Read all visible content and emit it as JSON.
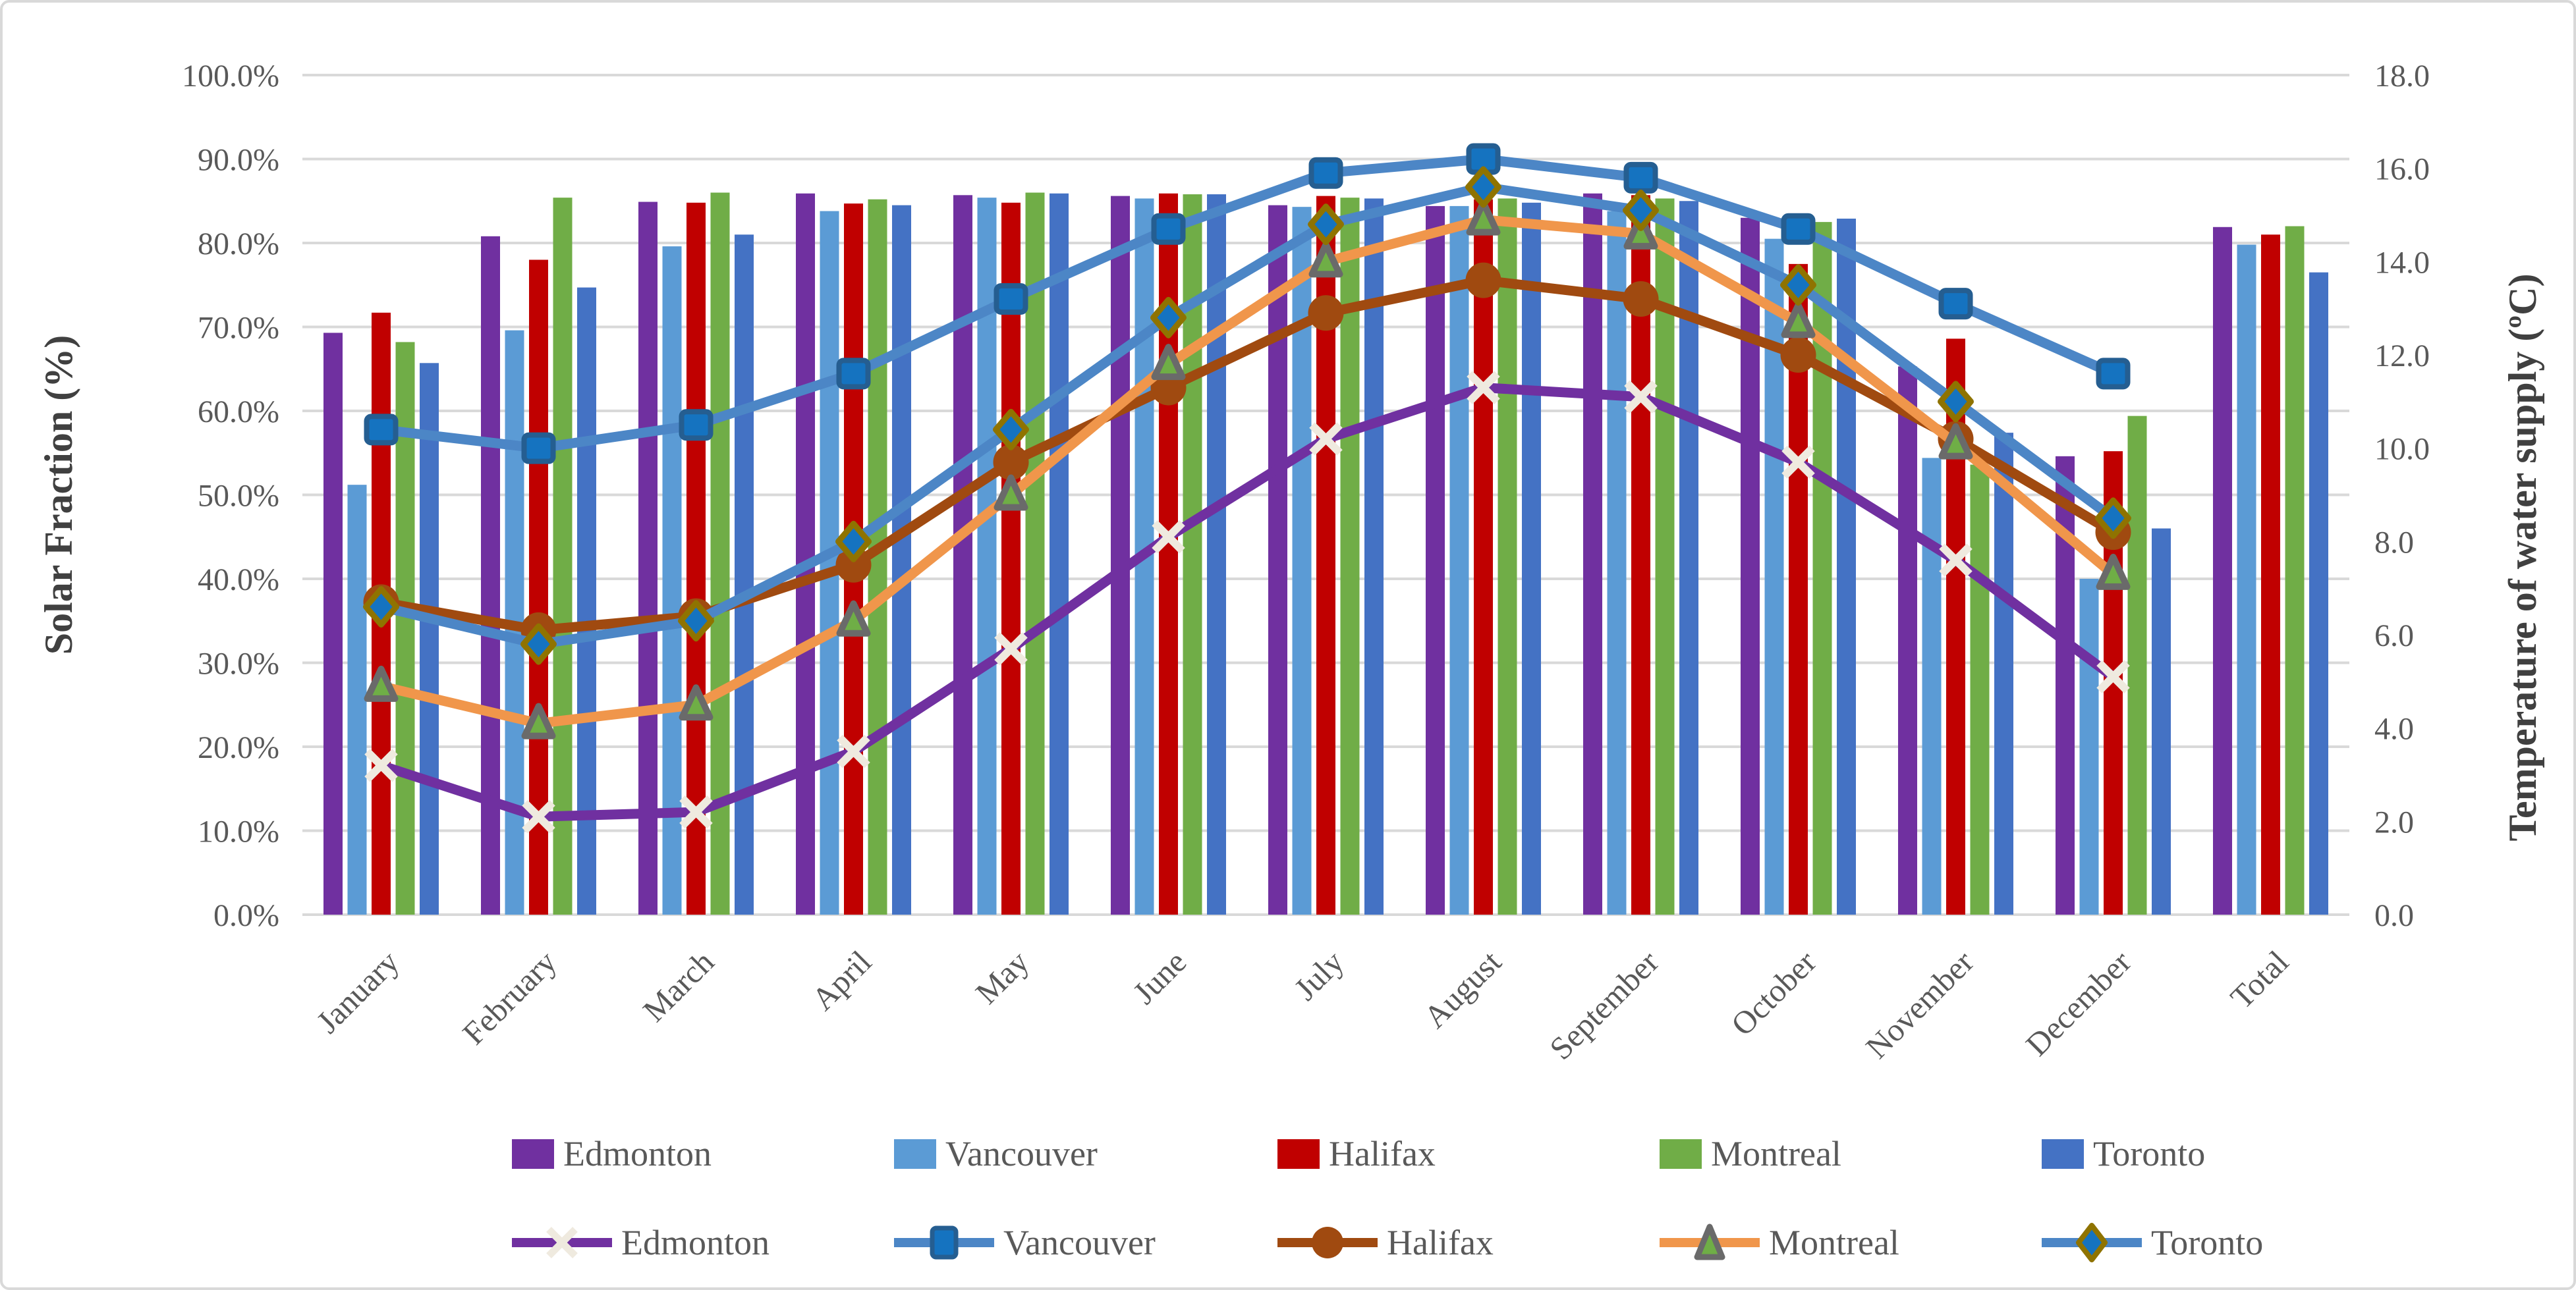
{
  "chart_data": {
    "type": "bar+line-combo",
    "categories": [
      "January",
      "February",
      "March",
      "April",
      "May",
      "June",
      "July",
      "August",
      "September",
      "October",
      "November",
      "December",
      "Total"
    ],
    "left_axis": {
      "title": "Solar Fraction (%)",
      "min": 0,
      "max": 100,
      "tick_step": 10,
      "tick_labels": [
        "0.0%",
        "10.0%",
        "20.0%",
        "30.0%",
        "40.0%",
        "50.0%",
        "60.0%",
        "70.0%",
        "80.0%",
        "90.0%",
        "100.0%"
      ]
    },
    "right_axis": {
      "title": "Temperature of water supply (ºC)",
      "min": 0,
      "max": 18,
      "tick_step": 2,
      "tick_labels": [
        "0.0",
        "2.0",
        "4.0",
        "6.0",
        "8.0",
        "10.0",
        "12.0",
        "14.0",
        "16.0",
        "18.0"
      ]
    },
    "grid": "horizontal, every 10% of left axis",
    "legend_position": "bottom, two rows (row 1 = bars, row 2 = lines)",
    "bar_series": [
      {
        "name": "Edmonton",
        "color": "#7030A0",
        "values": [
          69.3,
          80.8,
          84.9,
          85.9,
          85.7,
          85.6,
          84.5,
          84.4,
          85.9,
          83.0,
          65.3,
          54.6,
          81.9
        ]
      },
      {
        "name": "Vancouver",
        "color": "#5B9BD5",
        "values": [
          51.2,
          69.6,
          79.6,
          83.8,
          85.4,
          85.3,
          84.3,
          84.4,
          83.8,
          80.5,
          54.4,
          40.0,
          79.8
        ]
      },
      {
        "name": "Halifax",
        "color": "#C00000",
        "values": [
          71.7,
          78.0,
          84.8,
          84.7,
          84.8,
          85.9,
          85.6,
          85.2,
          85.7,
          77.5,
          68.6,
          55.2,
          81.0
        ]
      },
      {
        "name": "Montreal",
        "color": "#70AD47",
        "values": [
          68.2,
          85.4,
          86.0,
          85.2,
          86.0,
          85.8,
          85.4,
          85.3,
          85.3,
          82.5,
          53.6,
          59.4,
          82.0
        ]
      },
      {
        "name": "Toronto",
        "color": "#4472C4",
        "values": [
          65.7,
          74.7,
          81.0,
          84.5,
          85.9,
          85.8,
          85.3,
          84.8,
          85.0,
          82.9,
          57.4,
          46.0,
          76.5
        ]
      }
    ],
    "line_series": [
      {
        "name": "Edmonton",
        "color": "#7030A0",
        "marker": "x-cross",
        "marker_fill": "#EFEADF",
        "marker_stroke": "#EFEADF",
        "values": [
          3.2,
          2.1,
          2.2,
          3.5,
          5.7,
          8.1,
          10.2,
          11.3,
          11.1,
          9.7,
          7.6,
          5.1
        ]
      },
      {
        "name": "Vancouver",
        "color": "#4C86C6",
        "marker": "square",
        "marker_fill": "#1573C0",
        "marker_stroke": "#255E91",
        "values": [
          10.4,
          10.0,
          10.5,
          11.6,
          13.2,
          14.7,
          15.9,
          16.2,
          15.8,
          14.7,
          13.1,
          11.6
        ]
      },
      {
        "name": "Halifax",
        "color": "#A04A10",
        "marker": "circle",
        "marker_fill": "#A04A10",
        "marker_stroke": "#A04A10",
        "values": [
          6.7,
          6.1,
          6.4,
          7.5,
          9.7,
          11.3,
          12.9,
          13.6,
          13.2,
          12.0,
          10.2,
          8.2
        ]
      },
      {
        "name": "Montreal",
        "color": "#F0964B",
        "marker": "triangle",
        "marker_fill": "#6FAE46",
        "marker_stroke": "#6A6A6A",
        "values": [
          4.9,
          4.1,
          4.5,
          6.3,
          9.0,
          11.8,
          14.0,
          14.9,
          14.6,
          12.7,
          10.1,
          7.3
        ]
      },
      {
        "name": "Toronto",
        "color": "#4C86C6",
        "marker": "diamond",
        "marker_fill": "#1573C0",
        "marker_stroke": "#8F7300",
        "values": [
          6.6,
          5.8,
          6.3,
          8.0,
          10.4,
          12.8,
          14.8,
          15.6,
          15.1,
          13.5,
          11.0,
          8.5
        ]
      }
    ],
    "colors": {
      "gridline": "#D9D9D9",
      "frame_border": "#D9D9D9",
      "tick_text": "#595959",
      "axis_title_text": "#404040"
    }
  },
  "legend": {
    "row1_labels": [
      "Edmonton",
      "Vancouver",
      "Halifax",
      "Montreal",
      "Toronto"
    ],
    "row2_labels": [
      "Edmonton",
      "Vancouver",
      "Halifax",
      "Montreal",
      "Toronto"
    ]
  },
  "titles": {
    "left_axis": "Solar Fraction (%)",
    "right_axis": "Temperature of water supply (ºC)"
  }
}
